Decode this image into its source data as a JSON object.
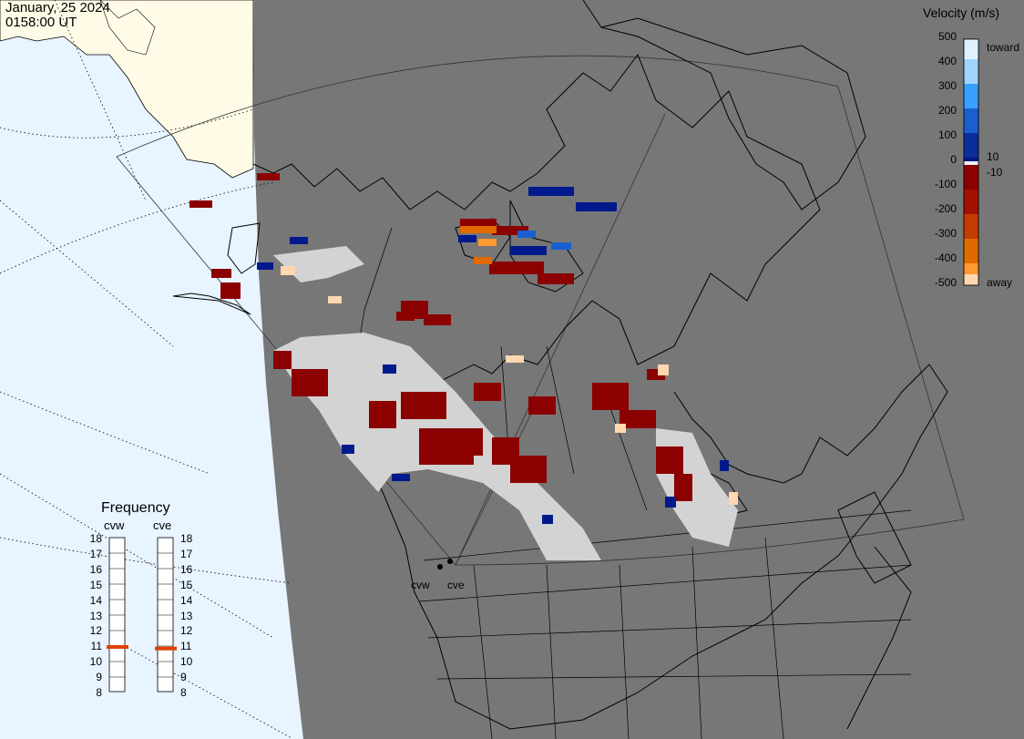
{
  "header": {
    "date": "January, 25 2024",
    "time": "0158:00 UT"
  },
  "velocity_scale": {
    "title": "Velocity (m/s)",
    "ticks": [
      "500",
      "400",
      "300",
      "200",
      "100",
      "0",
      "-100",
      "-200",
      "-300",
      "-400",
      "-500"
    ],
    "inner_ticks": [
      "10",
      "-10"
    ],
    "toward_label": "toward",
    "away_label": "away",
    "colors": {
      "toward": [
        "#dff1ff",
        "#9fd4ff",
        "#3aa0ff",
        "#1a5fd0",
        "#0a2e9c",
        "#001680"
      ],
      "away": [
        "#8b0000",
        "#a30f00",
        "#c33d00",
        "#e06a00",
        "#ff9a30",
        "#ffd7b0"
      ]
    }
  },
  "frequency": {
    "title": "Frequency",
    "radars": [
      "cvw",
      "cve"
    ],
    "ticks": [
      "18",
      "17",
      "16",
      "15",
      "14",
      "13",
      "12",
      "11",
      "10",
      "9",
      "8"
    ],
    "cvw_value": 10.9,
    "cve_value": 10.8
  },
  "map": {
    "radar_sites": [
      "cvw",
      "cve"
    ],
    "colors": {
      "ocean": "#e8f4ff",
      "land_out": "#fffbe6",
      "fov": "#777777",
      "ground_scatter": "#d3d3d3",
      "away_strong": "#8b0000",
      "toward_strong": "#001a8c"
    }
  }
}
